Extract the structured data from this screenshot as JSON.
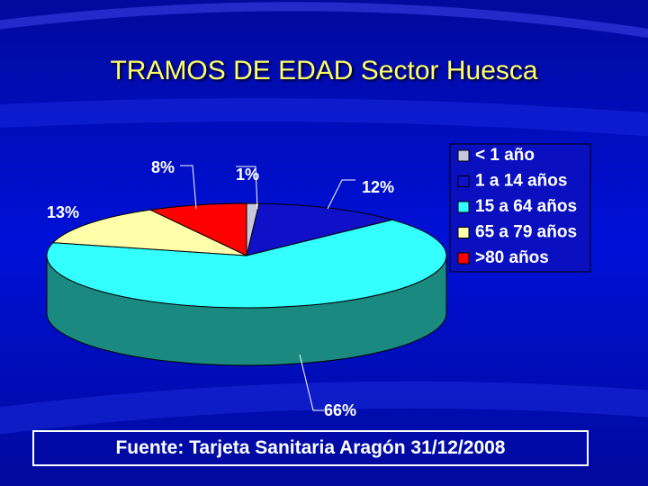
{
  "chart_data": {
    "type": "pie",
    "title": "TRAMOS DE EDAD Sector Huesca",
    "slices": [
      {
        "label": "< 1 año",
        "value": 1,
        "pct": "1%",
        "color": "#c8c8dc"
      },
      {
        "label": "1 a 14 años",
        "value": 12,
        "pct": "12%",
        "color": "#1010c8"
      },
      {
        "label": "15 a 64 años",
        "value": 66,
        "pct": "66%",
        "color": "#33ffff"
      },
      {
        "label": "65 a 79 años",
        "value": 13,
        "pct": "13%",
        "color": "#ffffaa"
      },
      {
        "label": ">80 años",
        "value": 8,
        "pct": "8%",
        "color": "#ff0000"
      }
    ],
    "legend_position": "right",
    "style": "3d-pie"
  },
  "source": "Fuente: Tarjeta Sanitaria Aragón 31/12/2008"
}
